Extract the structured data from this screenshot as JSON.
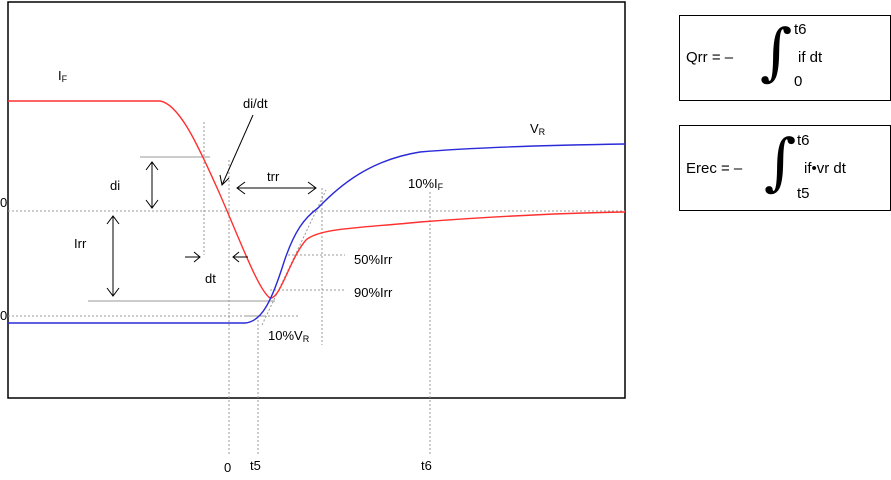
{
  "labels": {
    "if_main": "I",
    "if_sub": "F",
    "di_dt": "di/dt",
    "vr_main": "V",
    "vr_sub": "R",
    "di": "di",
    "trr": "trr",
    "pct10_if_main": "10%I",
    "pct10_if_sub": "F",
    "irr": "Irr",
    "dt": "dt",
    "pct50_irr": "50%Irr",
    "pct90_irr": "90%Irr",
    "pct10_vr_main": "10%V",
    "pct10_vr_sub": "R",
    "left_zero_top": "0",
    "left_zero_bottom": "0",
    "axis_0": "0",
    "axis_t5": "t5",
    "axis_t6": "t6"
  },
  "formulas": {
    "qrr": {
      "lhs": "Qrr = –",
      "upper": "t6",
      "lower": "0",
      "integrand": "if dt"
    },
    "erec": {
      "lhs": "Erec = –",
      "upper": "t6",
      "lower": "t5",
      "integrand": "if•vr dt"
    }
  },
  "colors": {
    "if_curve": "#ff3030",
    "vr_curve": "#2a2ad8",
    "guide": "#9a9a9a",
    "frame": "#000000"
  }
}
